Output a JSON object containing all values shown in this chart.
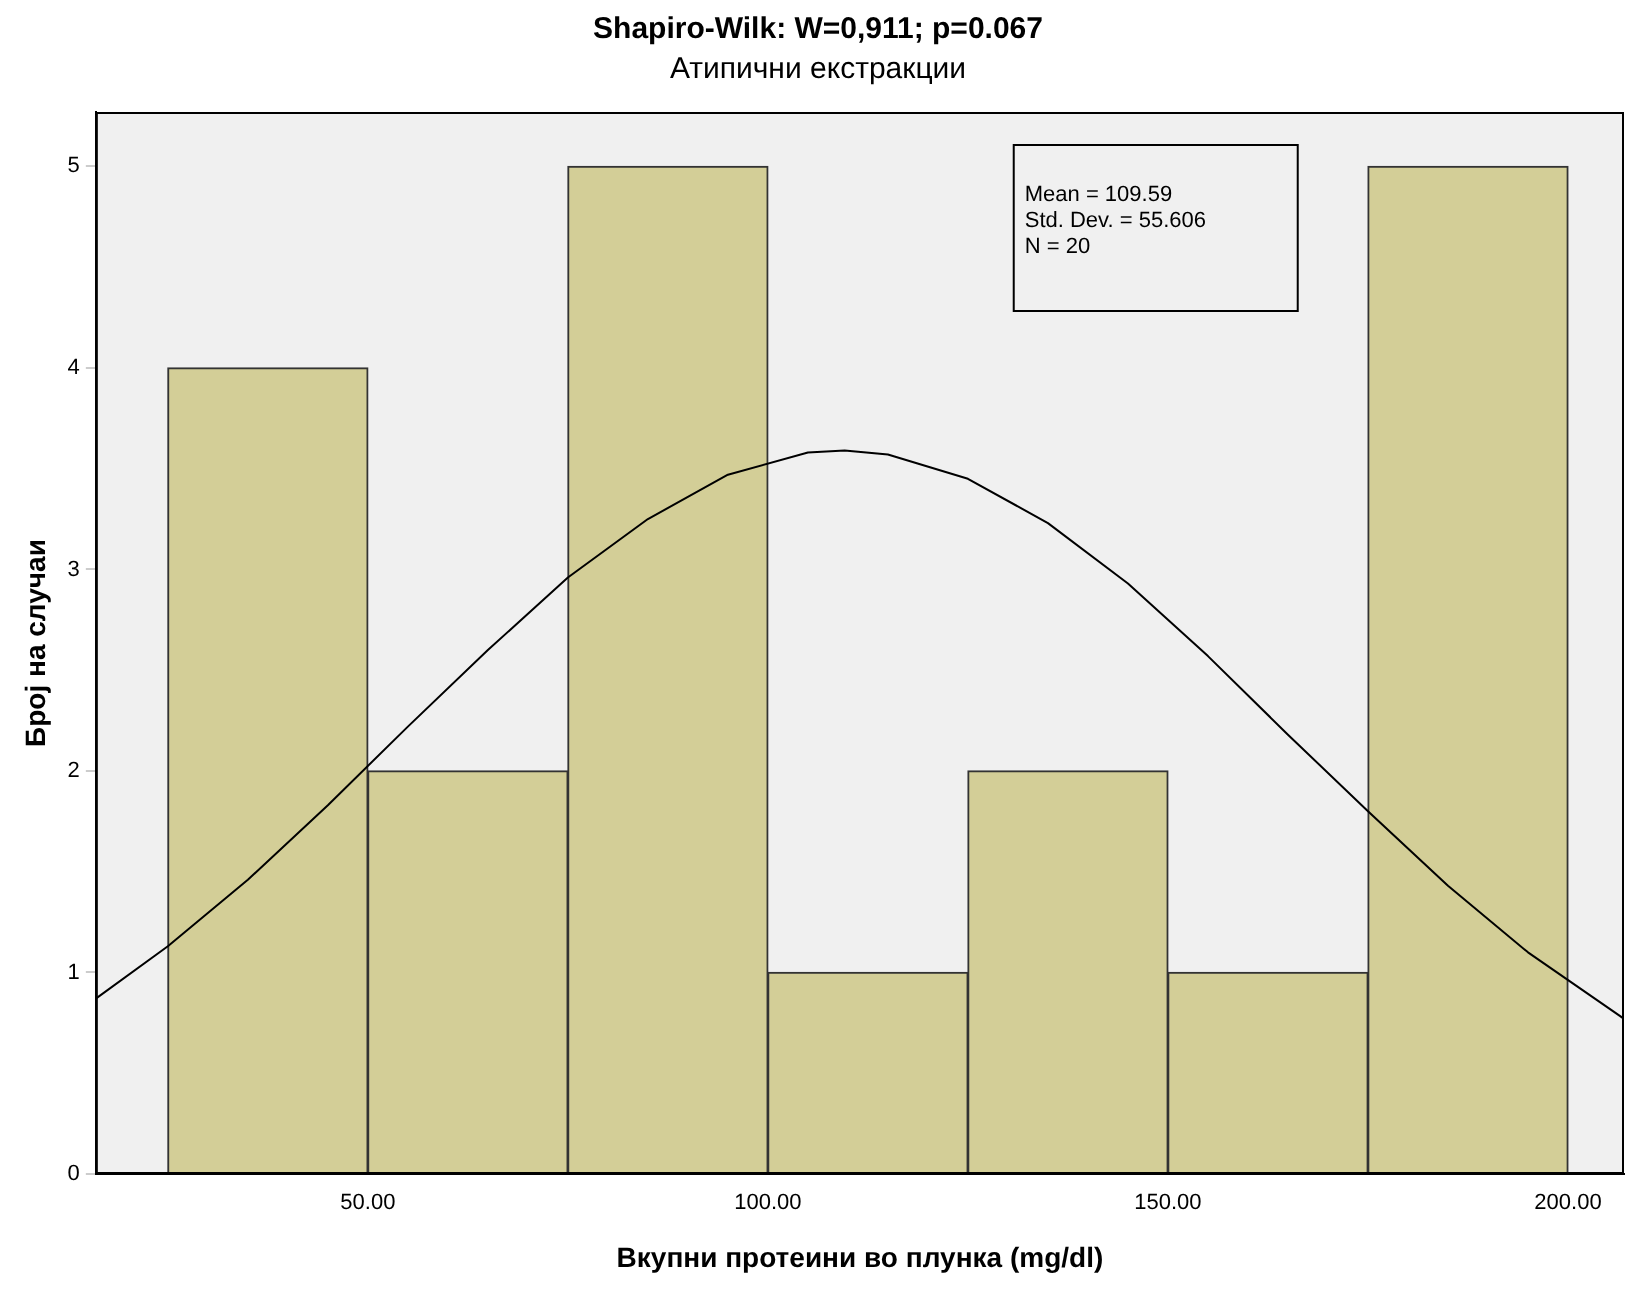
{
  "chart_data": {
    "type": "histogram",
    "title": "Shapiro-Wilk: W=0,911; p=0.067",
    "subtitle": "Атипични екстракции",
    "xlabel": "Вкупни протеини во плунка (mg/dl)",
    "ylabel": "Број на случаи",
    "bins": [
      25,
      50,
      75,
      100,
      125,
      150,
      175,
      200
    ],
    "values": [
      4,
      2,
      5,
      1,
      2,
      1,
      5
    ],
    "color": "#d3ce97",
    "series": [
      {
        "type": "line",
        "color": "#000000",
        "x": [
          16,
          25,
          35,
          45,
          55,
          65,
          75,
          85,
          95,
          105,
          109.59,
          115,
          125,
          135,
          145,
          155,
          165,
          175,
          185,
          195,
          207
        ],
        "values": [
          0.87,
          1.13,
          1.46,
          1.83,
          2.22,
          2.6,
          2.96,
          3.25,
          3.47,
          3.58,
          3.59,
          3.57,
          3.45,
          3.23,
          2.93,
          2.57,
          2.18,
          1.8,
          1.43,
          1.1,
          0.77
        ]
      }
    ],
    "annotations": [
      "Mean = 109.59",
      "Std. Dev. = 55.606",
      "N = 20"
    ],
    "xlim": [
      16,
      207
    ],
    "xticks": [
      {
        "value": 50,
        "label": "50.00"
      },
      {
        "value": 100,
        "label": "100.00"
      },
      {
        "value": 150,
        "label": "150.00"
      },
      {
        "value": 200,
        "label": "200.00"
      }
    ],
    "ylim": [
      0,
      5.27
    ],
    "yticks": [
      0,
      1,
      2,
      3,
      4,
      5
    ],
    "grid": false,
    "legend": false,
    "marker": "none"
  }
}
